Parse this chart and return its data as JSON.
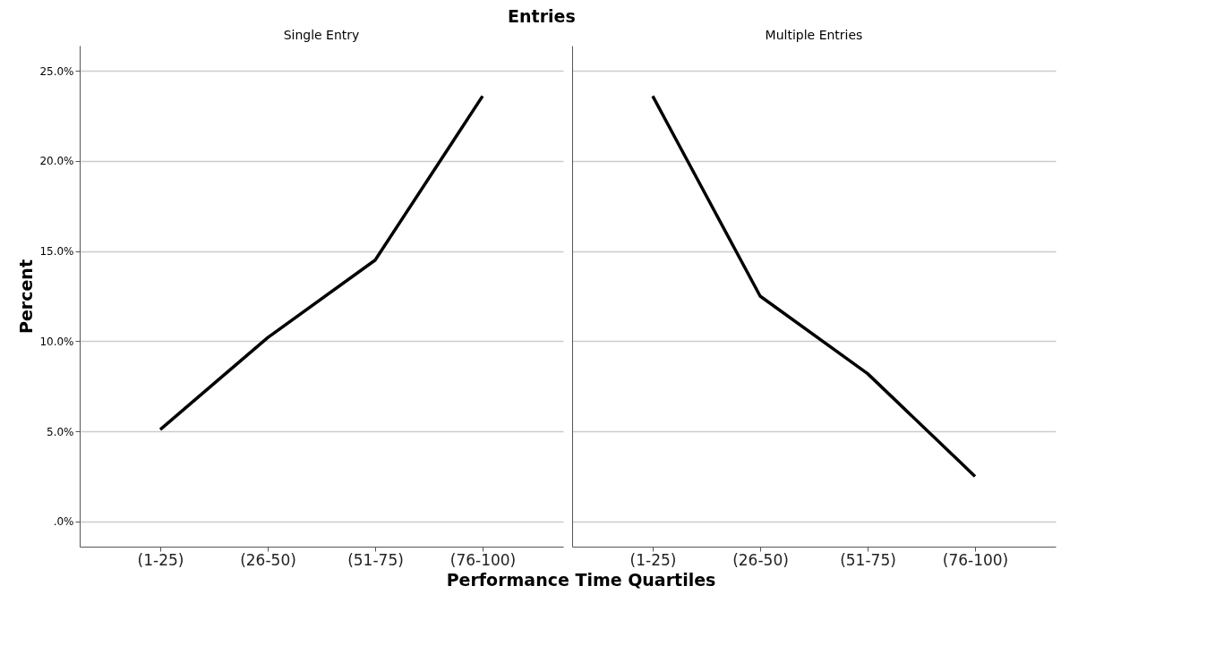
{
  "chart_data": [
    {
      "type": "line",
      "title": "Entries",
      "subtitle": "Single Entry",
      "xlabel": "Performance Time Quartiles",
      "ylabel": "Percent",
      "categories": [
        "(1-25)",
        "(26-50)",
        "(51-75)",
        "(76-100)"
      ],
      "series": [
        {
          "color": "#000000",
          "values": [
            5.1,
            10.2,
            14.5,
            23.6
          ]
        }
      ],
      "ylim": [
        -1.4,
        26.4
      ],
      "yticks": [
        {
          "value": 0,
          "label": ".0%"
        },
        {
          "value": 5,
          "label": "5.0%"
        },
        {
          "value": 10,
          "label": "10.0%"
        },
        {
          "value": 15,
          "label": "15.0%"
        },
        {
          "value": 20,
          "label": "20.0%"
        },
        {
          "value": 25,
          "label": "25.0%"
        }
      ],
      "grid": "y",
      "marker": "none",
      "line_style": "solid"
    },
    {
      "type": "line",
      "subtitle": "Multiple Entries",
      "categories": [
        "(1-25)",
        "(26-50)",
        "(51-75)",
        "(76-100)"
      ],
      "series": [
        {
          "color": "#000000",
          "values": [
            23.6,
            12.5,
            8.2,
            2.5
          ]
        }
      ],
      "ylim": [
        -1.4,
        26.4
      ],
      "yticks": [
        0,
        5,
        10,
        15,
        20,
        25
      ],
      "grid": "y",
      "marker": "none",
      "line_style": "solid",
      "tick_labels": "x"
    }
  ]
}
